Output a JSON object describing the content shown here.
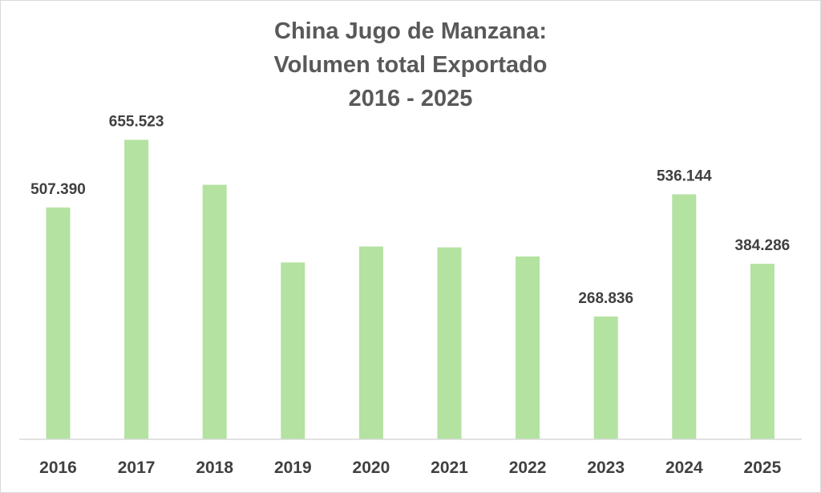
{
  "chart_data": {
    "type": "bar",
    "title": [
      "China Jugo de Manzana:",
      "Volumen total Exportado",
      "2016 - 2025"
    ],
    "xlabel": "",
    "ylabel": "",
    "categories": [
      "2016",
      "2017",
      "2018",
      "2019",
      "2020",
      "2021",
      "2022",
      "2023",
      "2024",
      "2025"
    ],
    "series": [
      {
        "values": [
          507390,
          655523,
          557000,
          387000,
          422000,
          420000,
          400000,
          268836,
          536144,
          384286
        ],
        "data_labels": [
          "507.390",
          "655.523",
          "",
          "",
          "",
          "",
          "",
          "268.836",
          "536.144",
          "384.286"
        ]
      }
    ],
    "ylim": [
      0,
      700000
    ],
    "grid": false,
    "legend": "none",
    "colors": {
      "bar": "#b4e2a1",
      "text": "#404040",
      "title": "#595959",
      "axis": "#d9d9d9"
    }
  }
}
